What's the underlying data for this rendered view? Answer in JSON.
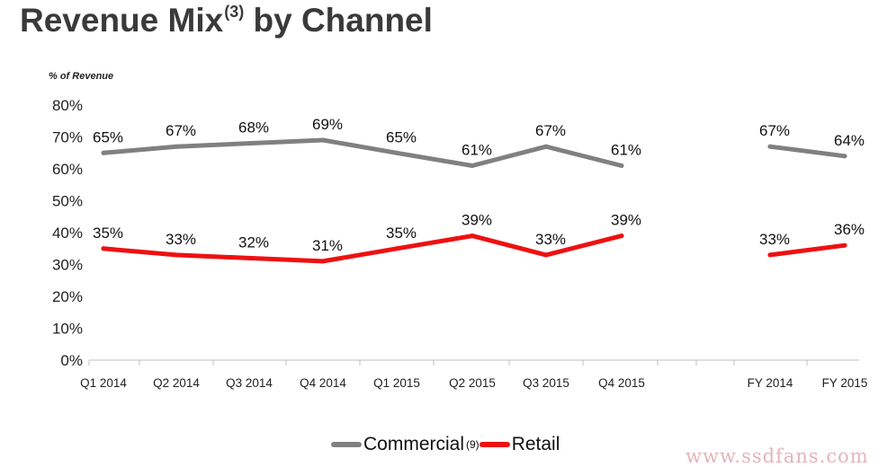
{
  "title": {
    "text": "Revenue Mix",
    "sup": "(3)",
    "rest": " by Channel"
  },
  "unit_label": "% of Revenue",
  "legend": [
    {
      "name": "Commercial",
      "sup": "(9)",
      "color": "#808080"
    },
    {
      "name": "Retail",
      "sup": "",
      "color": "#ee1111"
    }
  ],
  "watermark": "www.ssdfans.com",
  "chart_data": {
    "type": "line",
    "categories": [
      "Q1 2014",
      "Q2 2014",
      "Q3 2014",
      "Q4 2014",
      "Q1 2015",
      "Q2 2015",
      "Q3 2015",
      "Q4 2015",
      "FY 2014",
      "FY 2015"
    ],
    "segments": [
      [
        0,
        7
      ],
      [
        8,
        9
      ]
    ],
    "ylim": [
      0,
      80
    ],
    "yticks": [
      "0%",
      "10%",
      "20%",
      "30%",
      "40%",
      "50%",
      "60%",
      "70%",
      "80%"
    ],
    "ylabel": "% of Revenue",
    "grid": false,
    "series": [
      {
        "name": "Commercial",
        "color": "#808080",
        "values": [
          65,
          67,
          68,
          69,
          65,
          61,
          67,
          61,
          67,
          64
        ],
        "labels": [
          "65%",
          "67%",
          "68%",
          "69%",
          "65%",
          "61%",
          "67%",
          "61%",
          "67%",
          "64%"
        ]
      },
      {
        "name": "Retail",
        "color": "#ee1111",
        "values": [
          35,
          33,
          32,
          31,
          35,
          39,
          33,
          39,
          33,
          36
        ],
        "labels": [
          "35%",
          "33%",
          "32%",
          "31%",
          "35%",
          "39%",
          "33%",
          "39%",
          "33%",
          "36%"
        ]
      }
    ]
  }
}
